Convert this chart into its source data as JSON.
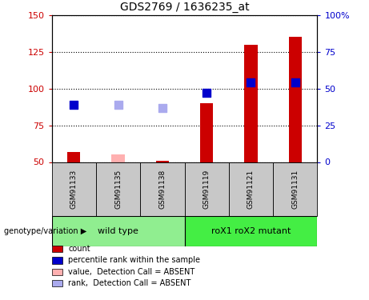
{
  "title": "GDS2769 / 1636235_at",
  "samples": [
    "GSM91133",
    "GSM91135",
    "GSM91138",
    "GSM91119",
    "GSM91121",
    "GSM91131"
  ],
  "bar_values": [
    57,
    55,
    51,
    90,
    130,
    135
  ],
  "bar_absent": [
    false,
    true,
    false,
    false,
    false,
    false
  ],
  "rank_values": [
    89,
    89,
    87,
    97,
    104,
    104
  ],
  "rank_absent": [
    false,
    true,
    true,
    false,
    false,
    false
  ],
  "ylim": [
    50,
    150
  ],
  "y2lim": [
    0,
    100
  ],
  "yticks": [
    50,
    75,
    100,
    125,
    150
  ],
  "y2ticks": [
    0,
    25,
    50,
    75,
    100
  ],
  "y2tick_labels": [
    "0",
    "25",
    "50",
    "75",
    "100%"
  ],
  "bar_color_present": "#CC0000",
  "bar_color_absent": "#FFB0B0",
  "rank_color_present": "#0000CC",
  "rank_color_absent": "#AAAAEE",
  "wt_color": "#90EE90",
  "rox_color": "#44EE44",
  "sample_box_color": "#C8C8C8",
  "legend_items": [
    {
      "label": "count",
      "color": "#CC0000"
    },
    {
      "label": "percentile rank within the sample",
      "color": "#0000CC"
    },
    {
      "label": "value,  Detection Call = ABSENT",
      "color": "#FFB0B0"
    },
    {
      "label": "rank,  Detection Call = ABSENT",
      "color": "#AAAAEE"
    }
  ],
  "bar_width": 0.3,
  "rank_marker_size": 45,
  "left_label": "genotype/variation"
}
